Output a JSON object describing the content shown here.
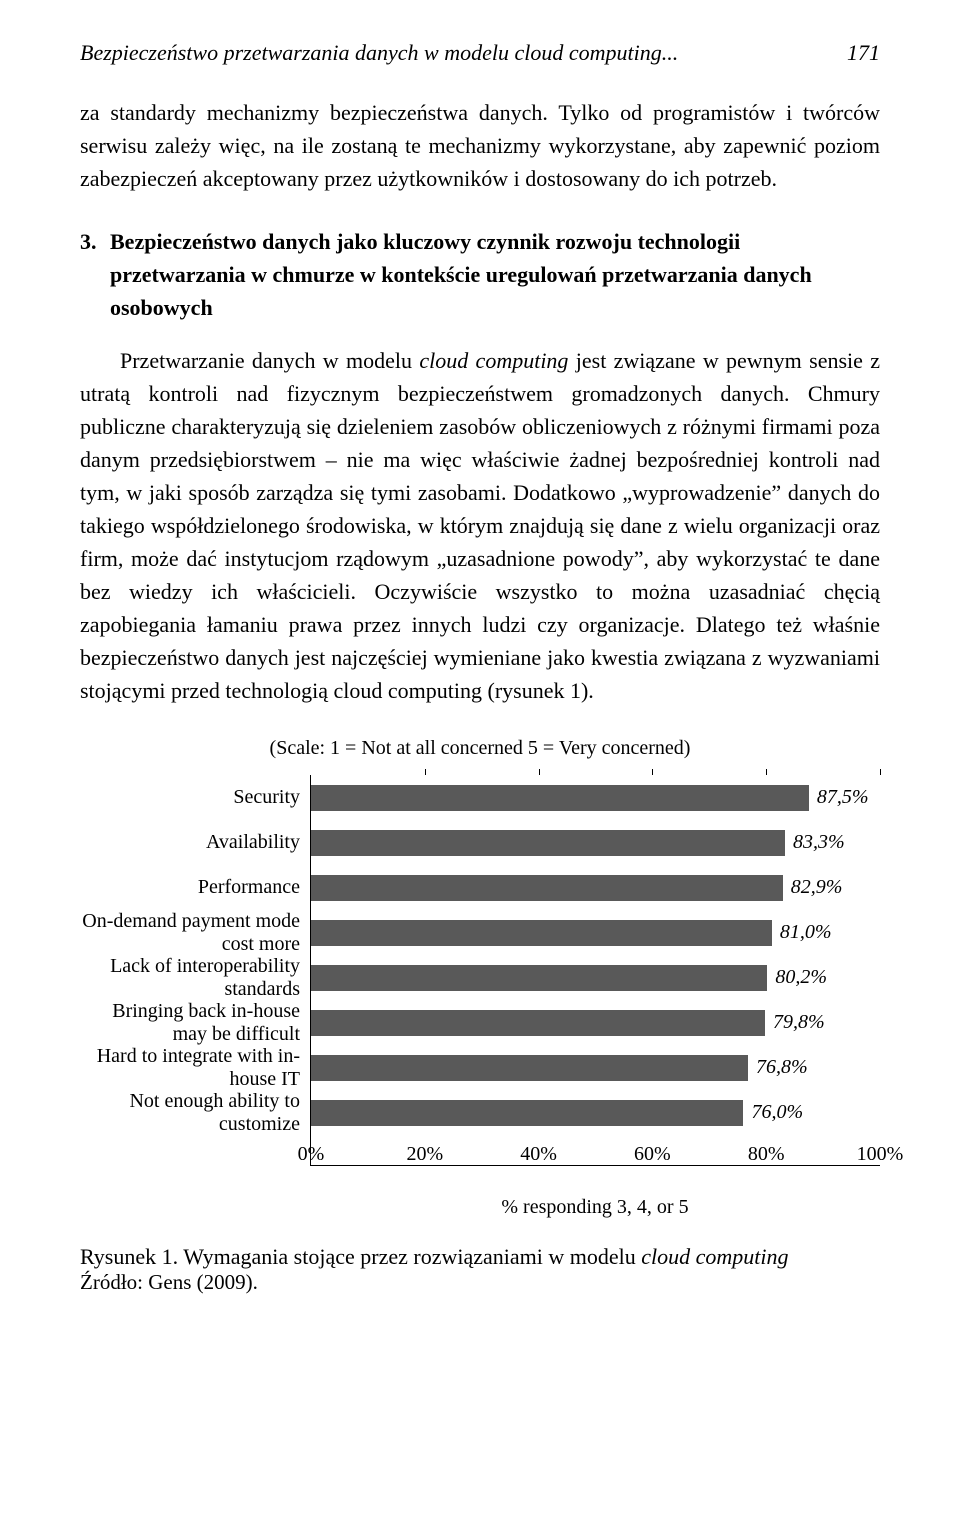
{
  "header": {
    "running_title": "Bezpieczeństwo przetwarzania danych w modelu cloud computing...",
    "page_number": "171"
  },
  "para1": "za standardy mechanizmy bezpieczeństwa danych. Tylko od programistów i twórców serwisu zależy więc, na ile zostaną te mechanizmy wykorzystane, aby zapewnić poziom zabezpieczeń akceptowany przez użytkowników i dostosowany do ich potrzeb.",
  "section": {
    "number": "3.",
    "title": "Bezpieczeństwo danych jako kluczowy czynnik rozwoju technologii przetwarzania w chmurze w kontekście uregulowań przetwarzania danych osobowych"
  },
  "para2_a": "Przetwarzanie danych w modelu ",
  "para2_em1": "cloud computing",
  "para2_b": " jest związane w pewnym sensie z utratą kontroli nad fizycznym bezpieczeństwem gromadzonych danych. Chmury publiczne charakteryzują się dzieleniem zasobów obliczeniowych z różnymi firmami poza danym przedsiębiorstwem – nie ma więc właściwie żadnej bezpośredniej kontroli nad tym, w jaki sposób zarządza się tymi zasobami. Dodatkowo „wyprowadzenie” danych do takiego współdzielonego środowiska, w którym znajdują się dane z wielu organizacji oraz firm, może dać instytucjom rządowym „uzasadnione powody”, aby wykorzystać te dane bez wiedzy ich właścicieli. Oczywiście wszystko to można uzasadniać chęcią zapobiegania łamaniu prawa przez innych ludzi czy organizacje. Dlatego też właśnie bezpieczeństwo danych jest najczęściej wymieniane jako kwestia związana z wyzwaniami stojącymi przed technologią cloud computing (rysunek 1).",
  "chart": {
    "scale_text": "(Scale: 1 = Not at all concerned  5 = Very concerned)",
    "categories": [
      {
        "label": "Security",
        "value": 87.5,
        "text": "87,5%"
      },
      {
        "label": "Availability",
        "value": 83.3,
        "text": "83,3%"
      },
      {
        "label": "Performance",
        "value": 82.9,
        "text": "82,9%"
      },
      {
        "label": "On-demand payment mode cost more",
        "value": 81.0,
        "text": "81,0%"
      },
      {
        "label": "Lack of interoperability standards",
        "value": 80.2,
        "text": "80,2%"
      },
      {
        "label": "Bringing back in-house may be difficult",
        "value": 79.8,
        "text": "79,8%"
      },
      {
        "label": "Hard to integrate with in-house IT",
        "value": 76.8,
        "text": "76,8%"
      },
      {
        "label": "Not enough ability to customize",
        "value": 76.0,
        "text": "76,0%"
      }
    ],
    "xticks": [
      {
        "pos": 0,
        "label": "0%"
      },
      {
        "pos": 20,
        "label": "20%"
      },
      {
        "pos": 40,
        "label": "40%"
      },
      {
        "pos": 60,
        "label": "60%"
      },
      {
        "pos": 80,
        "label": "80%"
      },
      {
        "pos": 100,
        "label": "100%"
      }
    ],
    "xtitle": "% responding 3, 4, or 5",
    "bar_color": "#595959",
    "xmax": 100
  },
  "caption_a": "Rysunek 1. Wymagania stojące przez rozwiązaniami w modelu ",
  "caption_em": "cloud computing",
  "source": "Źródło: Gens (2009)."
}
